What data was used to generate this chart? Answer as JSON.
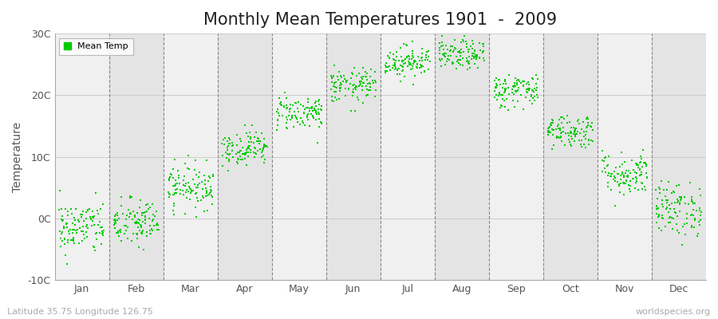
{
  "title": "Monthly Mean Temperatures 1901  -  2009",
  "ylabel": "Temperature",
  "bottom_left_text": "Latitude 35.75 Longitude 126.75",
  "bottom_right_text": "worldspecies.org",
  "legend_label": "Mean Temp",
  "dot_color": "#00cc00",
  "bg_color_light": "#f0f0f0",
  "bg_color_dark": "#e4e4e4",
  "fig_bg_color": "#ffffff",
  "ylim": [
    -10,
    30
  ],
  "yticks": [
    -10,
    0,
    10,
    20,
    30
  ],
  "ytick_labels": [
    "-10C",
    "0C",
    "10C",
    "20C",
    "30C"
  ],
  "months": [
    "Jan",
    "Feb",
    "Mar",
    "Apr",
    "May",
    "Jun",
    "Jul",
    "Aug",
    "Sep",
    "Oct",
    "Nov",
    "Dec"
  ],
  "monthly_mean_temps": [
    -1.5,
    -0.8,
    5.2,
    11.5,
    17.2,
    21.5,
    25.5,
    26.5,
    20.8,
    14.2,
    7.2,
    1.5
  ],
  "monthly_std_temps": [
    2.2,
    2.0,
    1.8,
    1.4,
    1.4,
    1.4,
    1.3,
    1.2,
    1.4,
    1.4,
    1.8,
    2.2
  ],
  "n_years": 109,
  "seed": 42,
  "marker_size": 3,
  "dashed_line_color": "#888888",
  "title_fontsize": 15,
  "axis_label_fontsize": 10,
  "tick_label_fontsize": 9,
  "footnote_fontsize": 8,
  "grid_color": "#cccccc"
}
